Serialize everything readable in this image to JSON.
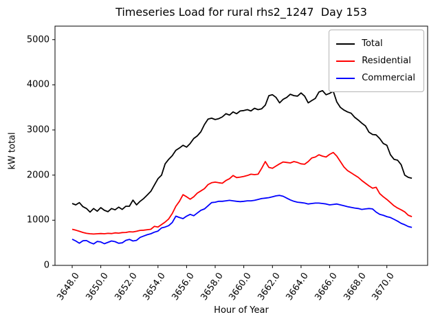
{
  "chart_data": {
    "type": "line",
    "title": "Timeseries Load for rural rhs2_1247  Day 153",
    "xlabel": "Hour of Year",
    "ylabel": "kW total",
    "xlim": [
      3646.8,
      3672.85
    ],
    "ylim": [
      0,
      5300
    ],
    "grid": false,
    "legend_position": "upper right",
    "xticks": [
      3648,
      3650,
      3652,
      3654,
      3656,
      3658,
      3660,
      3662,
      3664,
      3666,
      3668,
      3670
    ],
    "xtick_labels": [
      "3648.0",
      "3650.0",
      "3652.0",
      "3654.0",
      "3656.0",
      "3658.0",
      "3660.0",
      "3662.0",
      "3664.0",
      "3666.0",
      "3668.0",
      "3670.0"
    ],
    "yticks": [
      0,
      1000,
      2000,
      3000,
      4000,
      5000
    ],
    "ytick_labels": [
      "0",
      "1000",
      "2000",
      "3000",
      "4000",
      "5000"
    ],
    "x": [
      3648,
      3648.25,
      3648.5,
      3648.75,
      3649,
      3649.25,
      3649.5,
      3649.75,
      3650,
      3650.25,
      3650.5,
      3650.75,
      3651,
      3651.25,
      3651.5,
      3651.75,
      3652,
      3652.25,
      3652.5,
      3652.75,
      3653,
      3653.25,
      3653.5,
      3653.75,
      3654,
      3654.25,
      3654.5,
      3654.75,
      3655,
      3655.25,
      3655.5,
      3655.75,
      3656,
      3656.25,
      3656.5,
      3656.75,
      3657,
      3657.25,
      3657.5,
      3657.75,
      3658,
      3658.25,
      3658.5,
      3658.75,
      3659,
      3659.25,
      3659.5,
      3659.75,
      3660,
      3660.25,
      3660.5,
      3660.75,
      3661,
      3661.25,
      3661.5,
      3661.75,
      3662,
      3662.25,
      3662.5,
      3662.75,
      3663,
      3663.25,
      3663.5,
      3663.75,
      3664,
      3664.25,
      3664.5,
      3664.75,
      3665,
      3665.25,
      3665.5,
      3665.75,
      3666,
      3666.25,
      3666.5,
      3666.75,
      3667,
      3667.25,
      3667.5,
      3667.75,
      3668,
      3668.25,
      3668.5,
      3668.75,
      3669,
      3669.25,
      3669.5,
      3669.75,
      3670,
      3670.25,
      3670.5,
      3670.75,
      3671,
      3671.25,
      3671.5,
      3671.75
    ],
    "series": [
      {
        "name": "Total",
        "color": "#000000",
        "values": [
          1370,
          1340,
          1390,
          1300,
          1260,
          1180,
          1260,
          1200,
          1280,
          1220,
          1190,
          1260,
          1230,
          1290,
          1240,
          1310,
          1310,
          1445,
          1340,
          1420,
          1480,
          1560,
          1640,
          1780,
          1920,
          2000,
          2250,
          2350,
          2430,
          2550,
          2600,
          2660,
          2620,
          2700,
          2810,
          2870,
          2960,
          3120,
          3240,
          3260,
          3230,
          3250,
          3290,
          3360,
          3330,
          3400,
          3360,
          3420,
          3430,
          3450,
          3420,
          3480,
          3450,
          3470,
          3550,
          3760,
          3780,
          3720,
          3600,
          3680,
          3720,
          3790,
          3760,
          3750,
          3820,
          3750,
          3600,
          3650,
          3700,
          3840,
          3870,
          3780,
          3810,
          3860,
          3620,
          3500,
          3440,
          3400,
          3370,
          3280,
          3220,
          3150,
          3090,
          2950,
          2900,
          2890,
          2810,
          2700,
          2660,
          2450,
          2350,
          2330,
          2230,
          2000,
          1950,
          1930
        ]
      },
      {
        "name": "Residential",
        "color": "#ff0000",
        "values": [
          800,
          780,
          755,
          730,
          710,
          700,
          695,
          700,
          705,
          700,
          710,
          705,
          720,
          715,
          727,
          730,
          745,
          740,
          755,
          775,
          780,
          790,
          800,
          865,
          850,
          905,
          960,
          1030,
          1150,
          1310,
          1420,
          1565,
          1520,
          1465,
          1520,
          1600,
          1650,
          1700,
          1790,
          1830,
          1845,
          1830,
          1820,
          1880,
          1920,
          1990,
          1945,
          1955,
          1970,
          1990,
          2020,
          2010,
          2020,
          2150,
          2300,
          2170,
          2150,
          2200,
          2250,
          2290,
          2280,
          2270,
          2300,
          2280,
          2250,
          2240,
          2300,
          2380,
          2400,
          2450,
          2420,
          2400,
          2460,
          2500,
          2420,
          2300,
          2180,
          2100,
          2050,
          2000,
          1950,
          1880,
          1820,
          1760,
          1710,
          1730,
          1590,
          1520,
          1460,
          1390,
          1320,
          1270,
          1230,
          1185,
          1110,
          1080
        ]
      },
      {
        "name": "Commercial",
        "color": "#0000ff",
        "values": [
          580,
          540,
          490,
          545,
          550,
          505,
          475,
          530,
          520,
          480,
          510,
          540,
          525,
          490,
          500,
          555,
          575,
          540,
          555,
          620,
          650,
          680,
          700,
          735,
          760,
          830,
          850,
          880,
          950,
          1090,
          1060,
          1035,
          1090,
          1130,
          1100,
          1160,
          1220,
          1250,
          1320,
          1390,
          1400,
          1420,
          1420,
          1430,
          1440,
          1430,
          1420,
          1412,
          1420,
          1430,
          1430,
          1440,
          1460,
          1480,
          1490,
          1500,
          1520,
          1540,
          1550,
          1530,
          1490,
          1450,
          1420,
          1400,
          1390,
          1380,
          1360,
          1370,
          1380,
          1380,
          1370,
          1360,
          1340,
          1350,
          1360,
          1340,
          1320,
          1300,
          1285,
          1270,
          1260,
          1240,
          1250,
          1260,
          1250,
          1180,
          1130,
          1110,
          1080,
          1060,
          1020,
          980,
          930,
          900,
          860,
          840
        ]
      }
    ]
  }
}
